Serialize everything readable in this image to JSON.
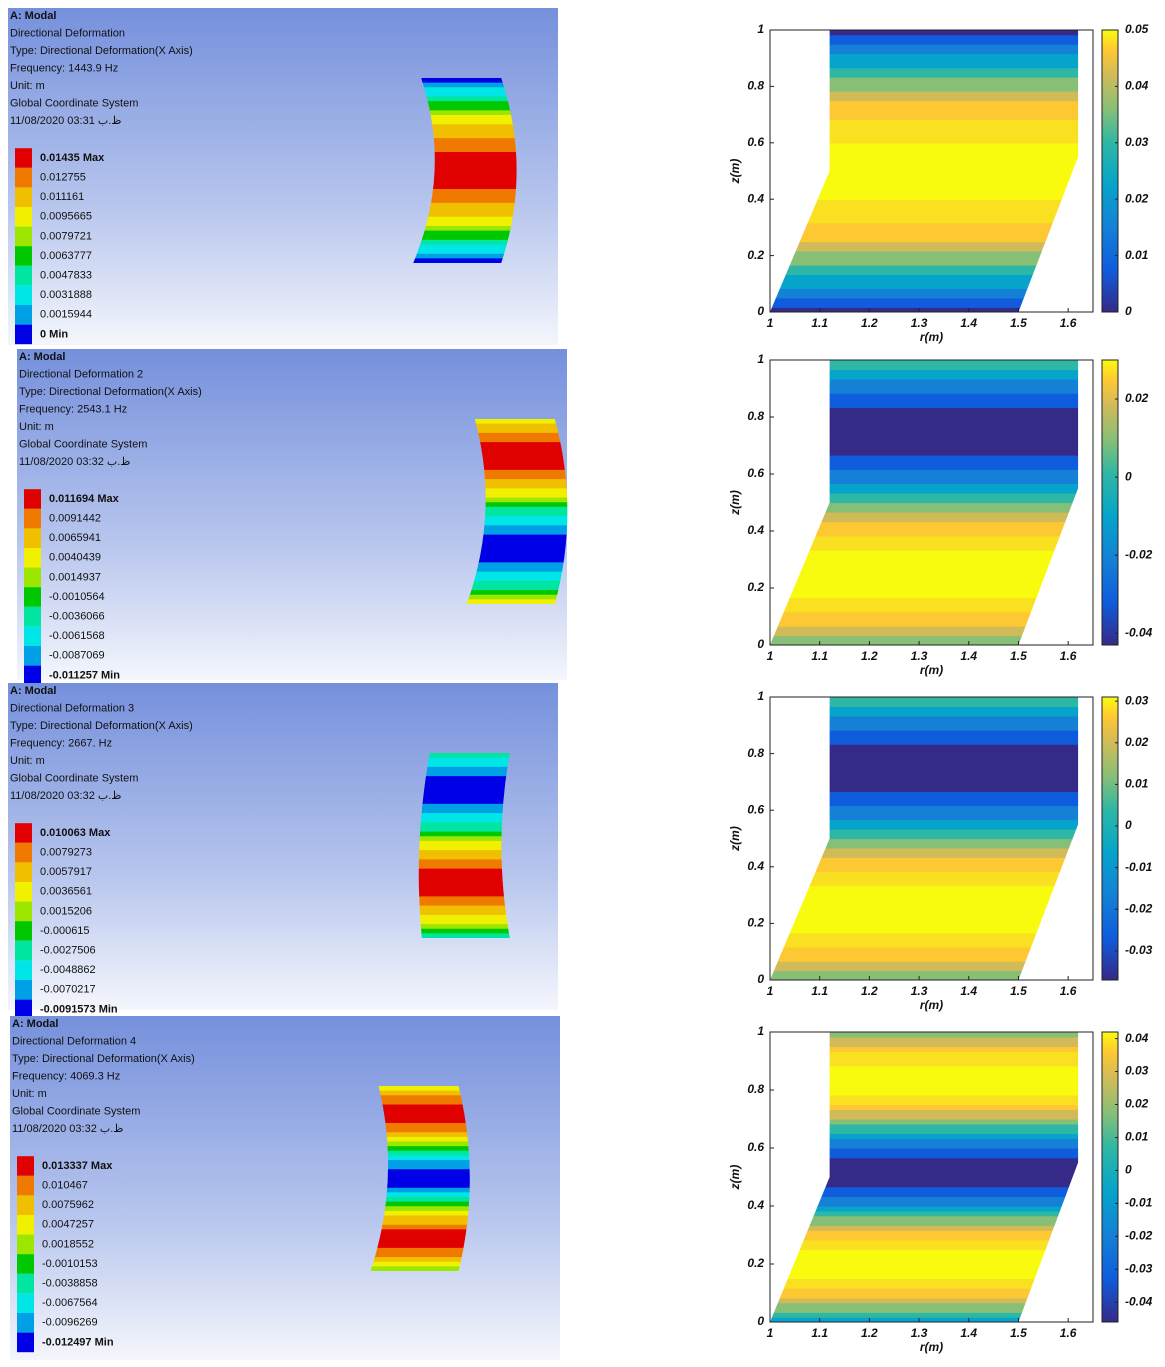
{
  "ansys": [
    {
      "title": "A: Modal",
      "result": "Directional Deformation",
      "type": "Type: Directional Deformation(X Axis)",
      "frequency": "Frequency: 1443.9 Hz",
      "unit": "Unit: m",
      "system": "Global Coordinate System",
      "date": "11/08/2020 03:31 ظ.ب",
      "legend": [
        "0.01435 Max",
        "0.012755",
        "0.011161",
        "0.0095665",
        "0.0079721",
        "0.0063777",
        "0.0047833",
        "0.0031888",
        "0.0015944",
        "0 Min"
      ]
    },
    {
      "title": "A: Modal",
      "result": "Directional Deformation 2",
      "type": "Type: Directional Deformation(X Axis)",
      "frequency": "Frequency: 2543.1 Hz",
      "unit": "Unit: m",
      "system": "Global Coordinate System",
      "date": "11/08/2020 03:32 ظ.ب",
      "legend": [
        "0.011694 Max",
        "0.0091442",
        "0.0065941",
        "0.0040439",
        "0.0014937",
        "-0.0010564",
        "-0.0036066",
        "-0.0061568",
        "-0.0087069",
        "-0.011257 Min"
      ]
    },
    {
      "title": "A: Modal",
      "result": "Directional Deformation 3",
      "type": "Type: Directional Deformation(X Axis)",
      "frequency": "Frequency: 2667. Hz",
      "unit": "Unit: m",
      "system": "Global Coordinate System",
      "date": "11/08/2020 03:32 ظ.ب",
      "legend": [
        "0.010063 Max",
        "0.0079273",
        "0.0057917",
        "0.0036561",
        "0.0015206",
        "-0.000615",
        "-0.0027506",
        "-0.0048862",
        "-0.0070217",
        "-0.0091573 Min"
      ]
    },
    {
      "title": "A: Modal",
      "result": "Directional Deformation 4",
      "type": "Type: Directional Deformation(X Axis)",
      "frequency": "Frequency: 4069.3 Hz",
      "unit": "Unit: m",
      "system": "Global Coordinate System",
      "date": "11/08/2020 03:32 ظ.ب",
      "legend": [
        "0.013337 Max",
        "0.010467",
        "0.0075962",
        "0.0047257",
        "0.0018552",
        "-0.0010153",
        "-0.0038858",
        "-0.0067564",
        "-0.0096269",
        "-0.012497 Min"
      ]
    }
  ],
  "plots": [
    {
      "xlabel": "r(m)",
      "ylabel": "z(m)",
      "xlim": [
        1,
        1.65
      ],
      "xticks": [
        1,
        1.1,
        1.2,
        1.3,
        1.4,
        1.5,
        1.6
      ],
      "ylim": [
        0,
        1
      ],
      "yticks": [
        0,
        0.2,
        0.4,
        0.6,
        0.8,
        1
      ],
      "clim": [
        0,
        0.05
      ],
      "cticks": [
        0,
        0.01,
        0.02,
        0.03,
        0.04,
        0.05
      ]
    },
    {
      "xlabel": "r(m)",
      "ylabel": "z(m)",
      "xlim": [
        1,
        1.65
      ],
      "xticks": [
        1,
        1.1,
        1.2,
        1.3,
        1.4,
        1.5,
        1.6
      ],
      "ylim": [
        0,
        1
      ],
      "yticks": [
        0,
        0.2,
        0.4,
        0.6,
        0.8,
        1
      ],
      "clim": [
        -0.043,
        0.03
      ],
      "cticks": [
        -0.04,
        -0.02,
        0,
        0.02
      ]
    },
    {
      "xlabel": "r(m)",
      "ylabel": "z(m)",
      "xlim": [
        1,
        1.65
      ],
      "xticks": [
        1,
        1.1,
        1.2,
        1.3,
        1.4,
        1.5,
        1.6
      ],
      "ylim": [
        0,
        1
      ],
      "yticks": [
        0,
        0.2,
        0.4,
        0.6,
        0.8,
        1
      ],
      "clim": [
        -0.037,
        0.031
      ],
      "cticks": [
        -0.03,
        -0.02,
        -0.01,
        0,
        0.01,
        0.02,
        0.03
      ]
    },
    {
      "xlabel": "r(m)",
      "ylabel": "z(m)",
      "xlim": [
        1,
        1.65
      ],
      "xticks": [
        1,
        1.1,
        1.2,
        1.3,
        1.4,
        1.5,
        1.6
      ],
      "ylim": [
        0,
        1
      ],
      "yticks": [
        0,
        0.2,
        0.4,
        0.6,
        0.8,
        1
      ],
      "clim": [
        -0.046,
        0.042
      ],
      "cticks": [
        -0.04,
        -0.03,
        -0.02,
        -0.01,
        0,
        0.01,
        0.02,
        0.03,
        0.04
      ]
    }
  ]
}
